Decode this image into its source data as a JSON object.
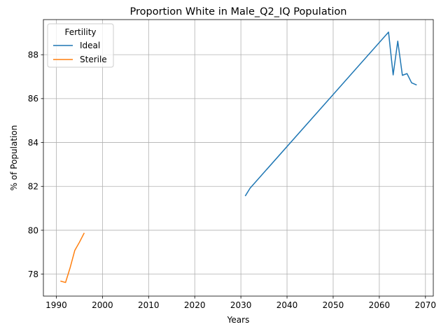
{
  "chart_data": {
    "type": "line",
    "title": "Proportion White in Male_Q2_IQ Population",
    "xlabel": "Years",
    "ylabel": "% of Population",
    "xlim": [
      1987.2,
      2071.7
    ],
    "ylim": [
      77.0,
      89.6
    ],
    "xticks": [
      1990,
      2000,
      2010,
      2020,
      2030,
      2040,
      2050,
      2060,
      2070
    ],
    "yticks": [
      78,
      80,
      82,
      84,
      86,
      88
    ],
    "grid": true,
    "legend": {
      "title": "Fertility",
      "placement": "top-left"
    },
    "series": [
      {
        "name": "Ideal",
        "color": "#1f77b4",
        "x": [
          2031,
          2032,
          2062,
          2063,
          2064,
          2065,
          2066,
          2067,
          2068
        ],
        "y": [
          81.58,
          81.92,
          89.03,
          87.08,
          88.62,
          87.06,
          87.14,
          86.72,
          86.63
        ]
      },
      {
        "name": "Sterile",
        "color": "#ff7f0e",
        "x": [
          1991,
          1992,
          1993,
          1994,
          1995,
          1996
        ],
        "y": [
          77.68,
          77.62,
          78.3,
          79.08,
          79.45,
          79.86
        ]
      }
    ]
  }
}
